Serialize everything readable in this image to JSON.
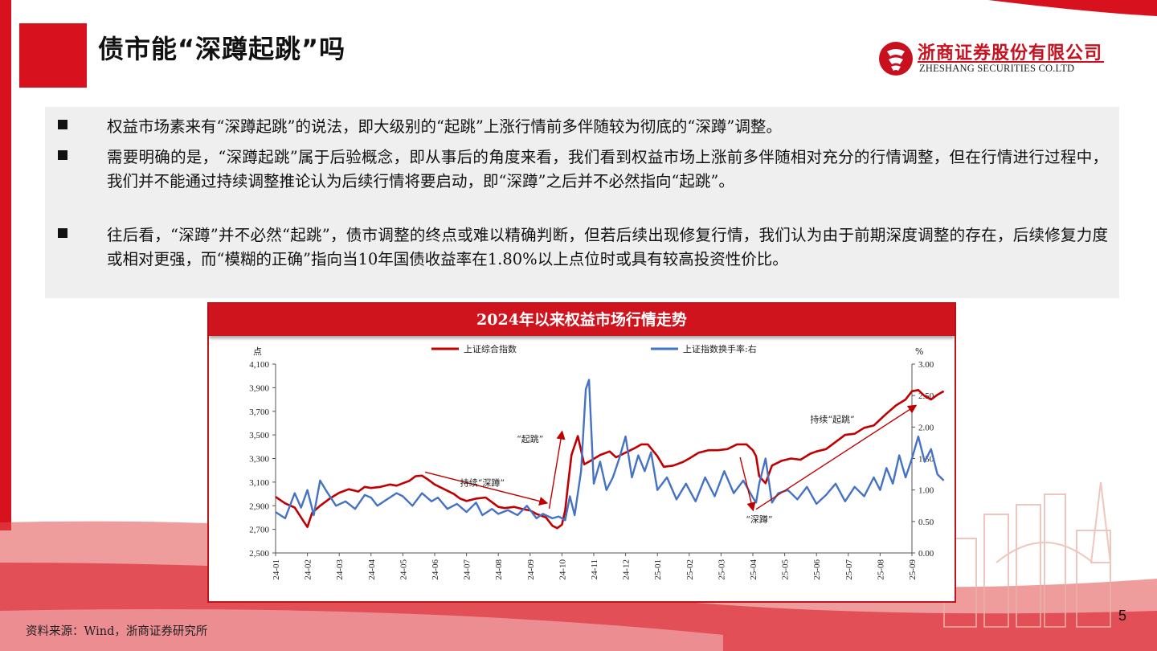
{
  "slide": {
    "title": "债市能“深蹲起跳”吗",
    "page_number": "5",
    "source": "资料来源：Wind，浙商证券研究所",
    "accent_color": "#d8111f"
  },
  "logo": {
    "name_cn": "浙商证券股份有限公司",
    "name_en": "ZHESHANG SECURITIES CO.LTD"
  },
  "bullets": [
    "权益市场素来有“深蹲起跳”的说法，即大级别的“起跳”上涨行情前多伴随较为彻底的“深蹲”调整。",
    "需要明确的是，“深蹲起跳”属于后验概念，即从事后的角度来看，我们看到权益市场上涨前多伴随相对充分的行情调整，但在行情进行过程中，我们并不能通过持续调整推论认为后续行情将要启动，即“深蹲”之后并不必然指向“起跳”。",
    "往后看，“深蹲”并不必然“起跳”，债市调整的终点或难以精确判断，但若后续出现修复行情，我们认为由于前期深度调整的存在，后续修复力度或相对更强，而“模糊的正确”指向当10年国债收益率在1.80%以上点位时或具有较高投资性价比。"
  ],
  "chart_data": {
    "type": "line",
    "title": "2024年以来权益市场行情走势",
    "y_left_label": "点",
    "y_right_label": "%",
    "y_left_range": [
      2500,
      4100
    ],
    "y_right_range": [
      0,
      3
    ],
    "y_left_ticks": [
      "2,500",
      "2,700",
      "2,900",
      "3,100",
      "3,300",
      "3,500",
      "3,700",
      "3,900",
      "4,100"
    ],
    "y_right_ticks": [
      "0.00",
      "0.50",
      "1.00",
      "1.50",
      "2.00",
      "2.50",
      "3.00"
    ],
    "x_ticks": [
      "24-01",
      "24-02",
      "24-03",
      "24-04",
      "24-05",
      "24-06",
      "24-07",
      "24-08",
      "24-09",
      "24-10",
      "24-11",
      "24-12",
      "25-01",
      "25-02",
      "25-03",
      "25-04",
      "25-05",
      "25-06",
      "25-07",
      "25-08",
      "25-09"
    ],
    "legend_position": "top",
    "grid": false,
    "series": [
      {
        "name": "上证综合指数",
        "axis": "left",
        "color": "#c00000",
        "x": [
          0,
          0.3,
          0.6,
          0.9,
          1.0,
          1.15,
          1.4,
          1.7,
          2.0,
          2.3,
          2.6,
          2.8,
          3.0,
          3.3,
          3.6,
          3.8,
          4.0,
          4.2,
          4.4,
          4.6,
          4.8,
          5.0,
          5.3,
          5.6,
          5.8,
          6.0,
          6.3,
          6.6,
          6.8,
          7.0,
          7.2,
          7.5,
          7.8,
          8.0,
          8.2,
          8.5,
          8.7,
          8.85,
          9.0,
          9.1,
          9.2,
          9.3,
          9.5,
          9.7,
          9.9,
          10.2,
          10.5,
          10.7,
          11.0,
          11.3,
          11.5,
          11.7,
          12.0,
          12.2,
          12.5,
          12.8,
          13.0,
          13.3,
          13.6,
          13.9,
          14.2,
          14.5,
          14.8,
          15.0,
          15.1,
          15.2,
          15.4,
          15.6,
          15.9,
          16.2,
          16.5,
          16.8,
          17.0,
          17.3,
          17.6,
          17.9,
          18.2,
          18.5,
          18.8,
          19.0,
          19.2,
          19.5,
          19.8,
          20.0,
          20.2,
          20.4,
          20.6,
          20.8,
          21.0
        ],
        "values": [
          2975,
          2920,
          2885,
          2760,
          2720,
          2840,
          2900,
          2960,
          3010,
          3040,
          3020,
          3060,
          3050,
          3060,
          3080,
          3070,
          3090,
          3110,
          3150,
          3155,
          3120,
          3080,
          3040,
          3000,
          2960,
          2940,
          2960,
          2970,
          2930,
          2890,
          2880,
          2890,
          2870,
          2860,
          2830,
          2800,
          2730,
          2710,
          2740,
          2860,
          3100,
          3330,
          3490,
          3250,
          3280,
          3330,
          3360,
          3310,
          3350,
          3390,
          3420,
          3420,
          3320,
          3230,
          3240,
          3270,
          3300,
          3350,
          3370,
          3370,
          3380,
          3420,
          3420,
          3370,
          3320,
          3150,
          3090,
          3240,
          3280,
          3300,
          3290,
          3340,
          3360,
          3380,
          3440,
          3500,
          3510,
          3560,
          3580,
          3630,
          3680,
          3750,
          3800,
          3870,
          3880,
          3830,
          3800,
          3840,
          3870
        ]
      },
      {
        "name": "上证指数换手率:右",
        "axis": "right",
        "color": "#4472c4",
        "x": [
          0,
          0.3,
          0.6,
          0.8,
          1.0,
          1.2,
          1.4,
          1.6,
          1.9,
          2.2,
          2.5,
          2.8,
          3.0,
          3.2,
          3.5,
          3.8,
          4.0,
          4.3,
          4.6,
          4.9,
          5.1,
          5.4,
          5.7,
          6.0,
          6.3,
          6.5,
          6.8,
          7.0,
          7.3,
          7.6,
          7.9,
          8.2,
          8.4,
          8.7,
          8.9,
          9.1,
          9.25,
          9.4,
          9.6,
          9.75,
          9.85,
          10.0,
          10.2,
          10.4,
          10.6,
          10.8,
          11.0,
          11.2,
          11.4,
          11.6,
          11.8,
          12.0,
          12.3,
          12.6,
          12.9,
          13.2,
          13.5,
          13.8,
          14.1,
          14.4,
          14.7,
          15.0,
          15.1,
          15.2,
          15.4,
          15.6,
          15.8,
          16.1,
          16.4,
          16.7,
          17.0,
          17.3,
          17.6,
          17.9,
          18.2,
          18.5,
          18.8,
          19.0,
          19.2,
          19.4,
          19.6,
          19.8,
          20.0,
          20.2,
          20.4,
          20.6,
          20.8,
          21.0
        ],
        "values": [
          0.65,
          0.55,
          0.95,
          0.72,
          1.0,
          0.6,
          1.15,
          0.98,
          0.75,
          0.82,
          0.7,
          0.92,
          0.88,
          0.75,
          0.85,
          0.95,
          0.9,
          0.75,
          0.95,
          0.82,
          0.88,
          0.7,
          0.78,
          0.65,
          0.8,
          0.6,
          0.7,
          0.62,
          0.68,
          0.6,
          0.75,
          0.55,
          0.62,
          0.55,
          0.58,
          0.52,
          0.9,
          0.6,
          1.3,
          2.6,
          2.75,
          1.1,
          1.45,
          1.0,
          1.2,
          1.5,
          1.85,
          1.2,
          1.55,
          1.3,
          1.6,
          1.0,
          1.2,
          0.85,
          1.1,
          0.82,
          1.2,
          0.9,
          1.3,
          0.95,
          1.15,
          0.88,
          0.8,
          1.1,
          1.5,
          0.8,
          0.95,
          1.0,
          0.85,
          1.05,
          0.78,
          0.92,
          1.1,
          0.82,
          1.05,
          0.9,
          1.2,
          1.0,
          1.35,
          1.1,
          1.55,
          1.2,
          1.5,
          1.85,
          1.45,
          1.65,
          1.25,
          1.15
        ]
      }
    ],
    "annotations": [
      {
        "text": "持续“深蹲”",
        "x": 6.5,
        "y_left": 3070
      },
      {
        "text": "“起跳”",
        "x": 8.0,
        "y_left": 3440
      },
      {
        "text": "“深蹲”",
        "x": 15.2,
        "y_left": 2760
      },
      {
        "text": "持续“起跳”",
        "x": 17.5,
        "y_left": 3605
      }
    ],
    "arrows": [
      {
        "from": [
          4.7,
          3185
        ],
        "to": [
          8.5,
          2925
        ]
      },
      {
        "from": [
          8.6,
          2875
        ],
        "to": [
          9.0,
          3520
        ]
      },
      {
        "from": [
          14.6,
          3310
        ],
        "to": [
          15.0,
          2870
        ]
      },
      {
        "from": [
          15.1,
          2870
        ],
        "to": [
          20.1,
          3745
        ]
      }
    ]
  }
}
